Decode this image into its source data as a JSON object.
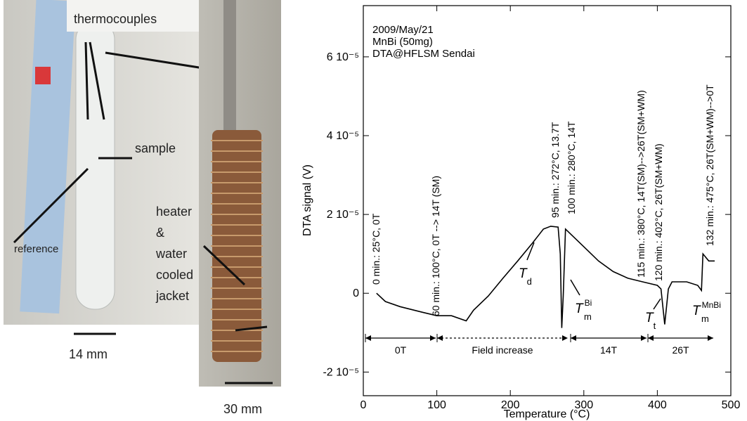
{
  "photo_labels": {
    "thermocouples": "thermocouples",
    "sample": "sample",
    "reference": "reference",
    "jacket": [
      "heater",
      "&",
      "water",
      "cooled",
      "jacket"
    ],
    "tube_width": "14 mm",
    "jacket_width": "30 mm"
  },
  "chart_data": {
    "type": "line",
    "header": [
      "2009/May/21",
      "MnBi (50mg)",
      "DTA@HFLSM Sendai"
    ],
    "y_label": "DTA signal (V)",
    "x_label": "Temperature (°C)",
    "xlim": [
      0,
      500
    ],
    "xticks": [
      0,
      100,
      200,
      300,
      400,
      500
    ],
    "ylim": [
      -2.6e-05,
      7.3e-05
    ],
    "yticks": [
      {
        "value": -2e-05,
        "label": "-2 10⁻⁵"
      },
      0,
      {
        "value": 2e-05,
        "label": "2 10⁻⁵"
      },
      {
        "value": 4e-05,
        "label": "4 10⁻⁵"
      },
      {
        "value": 6e-05,
        "label": "6 10⁻⁵"
      }
    ],
    "color": "#000000",
    "x": [
      18,
      30,
      50,
      80,
      100,
      120,
      140,
      150,
      170,
      190,
      210,
      230,
      245,
      255,
      265,
      268,
      270,
      272,
      275,
      280,
      300,
      320,
      340,
      360,
      380,
      400,
      405,
      410,
      415,
      420,
      440,
      455,
      460,
      462,
      470,
      478
    ],
    "values": [
      0,
      -2.1e-06,
      -3.4e-06,
      -4.8e-06,
      -5.7e-06,
      -5.7e-06,
      -7e-06,
      -4.3e-06,
      -7e-07,
      3.8e-06,
      8.2e-06,
      1.27e-05,
      1.63e-05,
      1.7e-05,
      1.68e-05,
      1e-05,
      -8.8e-06,
      -7e-07,
      1.63e-05,
      1.54e-05,
      1.18e-05,
      8.2e-06,
      5.5e-06,
      3.8e-06,
      2.9e-06,
      2e-06,
      1.1e-06,
      -7.9e-06,
      1.1e-06,
      2.9e-06,
      2.9e-06,
      2e-06,
      7e-07,
      1e-05,
      8.2e-06,
      8.2e-06
    ],
    "annotations": [
      "0 min.: 25°C, 0T",
      "60 min.: 100°C, 0T --> 14T (SM)",
      "95 min.: 272°C, 13.7T",
      "100 min.: 280°C, 14T",
      "115 min.: 380°C, 14T(SM)-->26T(SM+WM)",
      "120 min.: 402°C, 26T(SM+WM)",
      "132 min.: 475°C, 26T(SM+WM)-->0T"
    ],
    "field_labels": [
      "0T",
      "Field increase",
      "14T",
      "26T"
    ],
    "markers": [
      {
        "symbol": "T",
        "sub": "d"
      },
      {
        "symbol": "T",
        "sub": "m",
        "sup": "Bi"
      },
      {
        "symbol": "T",
        "sub": "t"
      },
      {
        "symbol": "T",
        "sub": "m",
        "sup": "MnBi"
      }
    ]
  }
}
